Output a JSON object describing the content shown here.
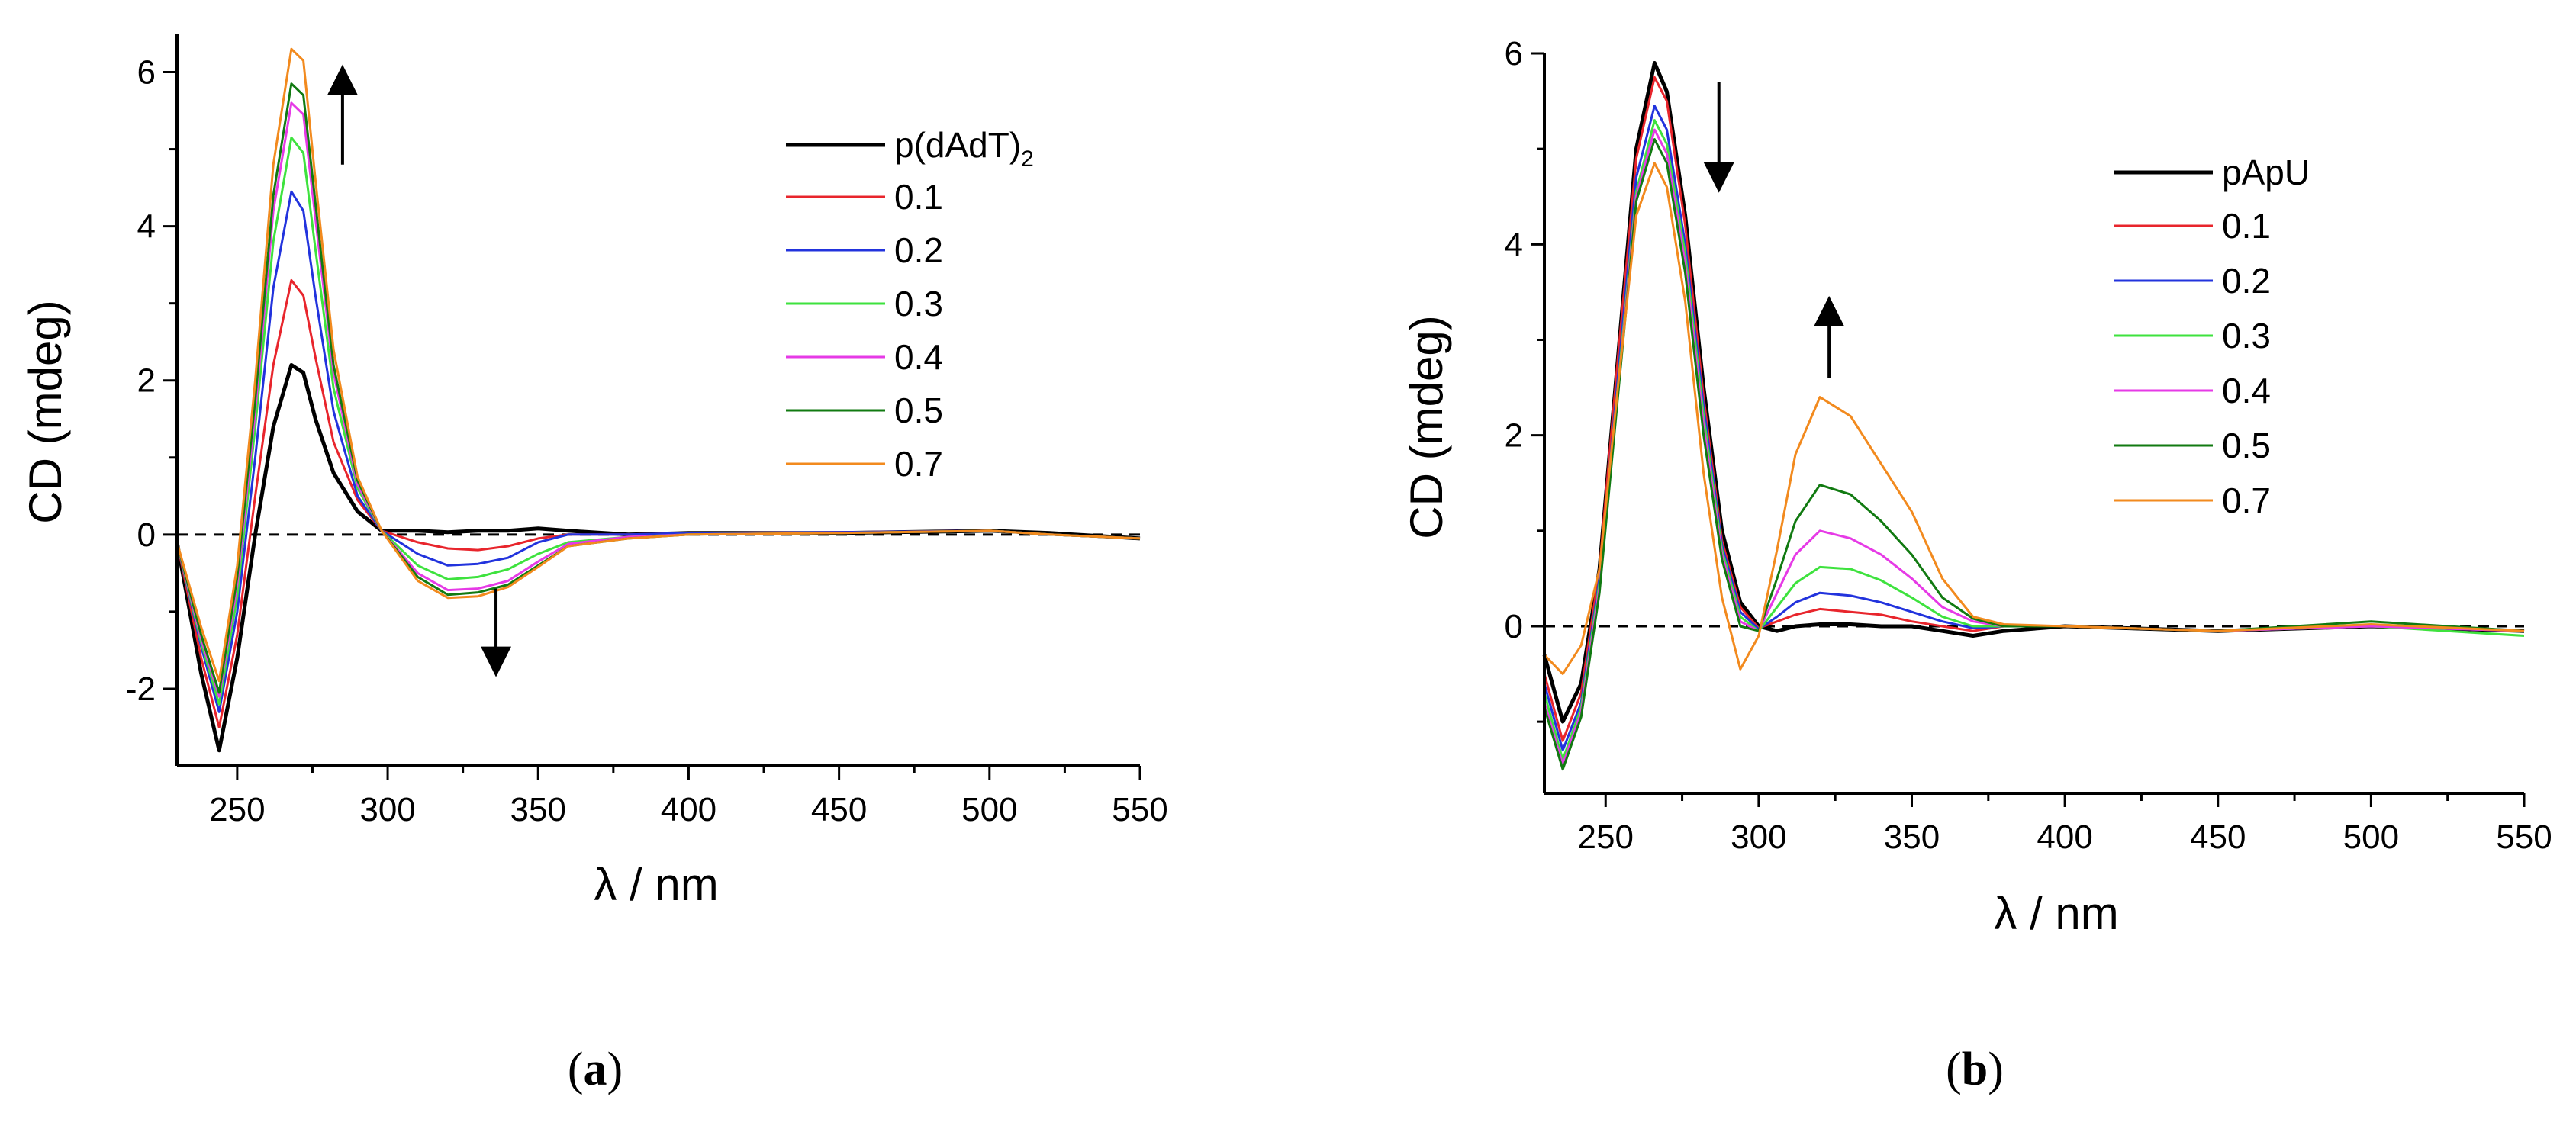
{
  "figure": {
    "panels": [
      {
        "label_open": "(",
        "label_letter": "a",
        "label_close": ")"
      },
      {
        "label_open": "(",
        "label_letter": "b",
        "label_close": ")"
      }
    ]
  },
  "colors": {
    "ref": "#000000",
    "c01": "#e8252c",
    "c02": "#2233dd",
    "c03": "#3ee23e",
    "c04": "#e63ae6",
    "c05": "#117a11",
    "c07": "#f28a1e"
  },
  "chart_data": [
    {
      "type": "line",
      "panel": "a",
      "title": "",
      "xlabel": "λ / nm",
      "ylabel": "CD (mdeg)",
      "xlim": [
        230,
        550
      ],
      "ylim": [
        -3,
        6.5
      ],
      "xticks": [
        250,
        300,
        350,
        400,
        450,
        500,
        550
      ],
      "yticks": [
        -2,
        0,
        2,
        4,
        6
      ],
      "zero_line": "dashed",
      "legend_position": "top-right",
      "legend": [
        {
          "label": "p(dAdT)",
          "subscript": "2"
        },
        {
          "label": "0.1"
        },
        {
          "label": "0.2"
        },
        {
          "label": "0.3"
        },
        {
          "label": "0.4"
        },
        {
          "label": "0.5"
        },
        {
          "label": "0.7"
        }
      ],
      "arrows": [
        {
          "x": 285,
          "from": 4.8,
          "to": 5.9,
          "direction": "up"
        },
        {
          "x": 336,
          "from": -0.7,
          "to": -1.65,
          "direction": "down"
        }
      ],
      "series": [
        {
          "name": "p(dAdT)2",
          "color": "#000000",
          "x": [
            230,
            238,
            244,
            250,
            256,
            262,
            268,
            272,
            276,
            282,
            290,
            298,
            310,
            320,
            330,
            340,
            350,
            360,
            380,
            400,
            450,
            500,
            520,
            550
          ],
          "y": [
            -0.1,
            -1.8,
            -2.8,
            -1.6,
            0.0,
            1.4,
            2.2,
            2.1,
            1.5,
            0.8,
            0.3,
            0.05,
            0.05,
            0.03,
            0.05,
            0.05,
            0.08,
            0.05,
            0.0,
            0.02,
            0.02,
            0.05,
            0.02,
            -0.05
          ]
        },
        {
          "name": "0.1",
          "color": "#e8252c",
          "x": [
            230,
            238,
            244,
            250,
            256,
            262,
            268,
            272,
            276,
            282,
            290,
            298,
            310,
            320,
            330,
            340,
            350,
            360,
            380,
            400,
            450,
            500,
            520,
            550
          ],
          "y": [
            -0.1,
            -1.6,
            -2.5,
            -1.3,
            0.5,
            2.2,
            3.3,
            3.1,
            2.3,
            1.2,
            0.45,
            0.05,
            -0.1,
            -0.18,
            -0.2,
            -0.15,
            -0.05,
            0.0,
            0.0,
            0.02,
            0.03,
            0.05,
            0.0,
            -0.05
          ]
        },
        {
          "name": "0.2",
          "color": "#2233dd",
          "x": [
            230,
            238,
            244,
            250,
            256,
            262,
            268,
            272,
            276,
            282,
            290,
            298,
            310,
            320,
            330,
            340,
            350,
            360,
            380,
            400,
            450,
            500,
            520,
            550
          ],
          "y": [
            -0.1,
            -1.45,
            -2.3,
            -1.0,
            1.0,
            3.2,
            4.45,
            4.2,
            3.1,
            1.6,
            0.5,
            0.05,
            -0.25,
            -0.4,
            -0.38,
            -0.3,
            -0.1,
            0.0,
            0.0,
            0.02,
            0.03,
            0.05,
            0.0,
            -0.05
          ]
        },
        {
          "name": "0.3",
          "color": "#3ee23e",
          "x": [
            230,
            238,
            244,
            250,
            256,
            262,
            268,
            272,
            276,
            282,
            290,
            298,
            310,
            320,
            330,
            340,
            350,
            360,
            380,
            400,
            450,
            500,
            520,
            550
          ],
          "y": [
            -0.1,
            -1.4,
            -2.2,
            -0.8,
            1.4,
            3.8,
            5.15,
            4.95,
            3.7,
            1.9,
            0.6,
            0.05,
            -0.4,
            -0.58,
            -0.55,
            -0.45,
            -0.25,
            -0.1,
            -0.03,
            0.0,
            0.02,
            0.05,
            0.0,
            -0.05
          ]
        },
        {
          "name": "0.4",
          "color": "#e63ae6",
          "x": [
            230,
            238,
            244,
            250,
            256,
            262,
            268,
            272,
            276,
            282,
            290,
            298,
            310,
            320,
            330,
            340,
            350,
            360,
            380,
            400,
            450,
            500,
            520,
            550
          ],
          "y": [
            -0.1,
            -1.35,
            -2.1,
            -0.65,
            1.6,
            4.2,
            5.6,
            5.45,
            4.1,
            2.1,
            0.65,
            0.05,
            -0.5,
            -0.72,
            -0.7,
            -0.6,
            -0.35,
            -0.12,
            -0.03,
            0.0,
            0.02,
            0.05,
            0.0,
            -0.05
          ]
        },
        {
          "name": "0.5",
          "color": "#117a11",
          "x": [
            230,
            238,
            244,
            250,
            256,
            262,
            268,
            272,
            276,
            282,
            290,
            298,
            310,
            320,
            330,
            340,
            350,
            360,
            380,
            400,
            450,
            500,
            520,
            550
          ],
          "y": [
            -0.1,
            -1.3,
            -2.05,
            -0.55,
            1.75,
            4.4,
            5.85,
            5.7,
            4.3,
            2.2,
            0.7,
            0.05,
            -0.55,
            -0.78,
            -0.75,
            -0.65,
            -0.4,
            -0.15,
            -0.05,
            0.0,
            0.02,
            0.05,
            0.0,
            -0.05
          ]
        },
        {
          "name": "0.7",
          "color": "#f28a1e",
          "x": [
            230,
            238,
            244,
            250,
            256,
            262,
            268,
            272,
            276,
            282,
            290,
            298,
            310,
            320,
            330,
            340,
            350,
            360,
            380,
            400,
            450,
            500,
            520,
            550
          ],
          "y": [
            -0.1,
            -1.2,
            -1.9,
            -0.4,
            2.0,
            4.8,
            6.3,
            6.15,
            4.6,
            2.4,
            0.75,
            0.05,
            -0.6,
            -0.82,
            -0.8,
            -0.68,
            -0.42,
            -0.15,
            -0.05,
            0.0,
            0.02,
            0.05,
            0.0,
            -0.05
          ]
        }
      ]
    },
    {
      "type": "line",
      "panel": "b",
      "title": "",
      "xlabel": "λ / nm",
      "ylabel": "CD (mdeg)",
      "xlim": [
        230,
        550
      ],
      "ylim": [
        -1.75,
        6
      ],
      "xticks": [
        250,
        300,
        350,
        400,
        450,
        500,
        550
      ],
      "yticks": [
        0,
        2,
        4,
        6
      ],
      "zero_line": "dashed",
      "legend_position": "top-right",
      "legend": [
        {
          "label": "pApU"
        },
        {
          "label": "0.1"
        },
        {
          "label": "0.2"
        },
        {
          "label": "0.3"
        },
        {
          "label": "0.4"
        },
        {
          "label": "0.5"
        },
        {
          "label": "0.7"
        }
      ],
      "arrows": [
        {
          "x": 287,
          "from": 5.7,
          "to": 4.7,
          "direction": "down"
        },
        {
          "x": 323,
          "from": 2.6,
          "to": 3.3,
          "direction": "up"
        }
      ],
      "series": [
        {
          "name": "pApU",
          "color": "#000000",
          "x": [
            230,
            236,
            242,
            248,
            254,
            260,
            266,
            270,
            276,
            282,
            288,
            294,
            300,
            306,
            312,
            320,
            330,
            340,
            350,
            360,
            370,
            380,
            400,
            450,
            500,
            550
          ],
          "y": [
            -0.3,
            -1.0,
            -0.6,
            0.6,
            2.8,
            5.0,
            5.9,
            5.6,
            4.3,
            2.5,
            1.0,
            0.25,
            0.0,
            -0.05,
            0.0,
            0.02,
            0.02,
            0.0,
            0.0,
            -0.05,
            -0.1,
            -0.05,
            0.0,
            -0.05,
            0.0,
            -0.05
          ]
        },
        {
          "name": "0.1",
          "color": "#e8252c",
          "x": [
            230,
            236,
            242,
            248,
            254,
            260,
            266,
            270,
            276,
            282,
            288,
            294,
            300,
            306,
            312,
            320,
            330,
            340,
            350,
            360,
            370,
            380,
            400,
            450,
            500,
            550
          ],
          "y": [
            -0.5,
            -1.2,
            -0.7,
            0.6,
            2.8,
            4.9,
            5.75,
            5.5,
            4.2,
            2.4,
            0.9,
            0.2,
            -0.02,
            0.05,
            0.12,
            0.18,
            0.15,
            0.12,
            0.05,
            0.0,
            -0.05,
            0.0,
            0.0,
            -0.05,
            0.0,
            -0.05
          ]
        },
        {
          "name": "0.2",
          "color": "#2233dd",
          "x": [
            230,
            236,
            242,
            248,
            254,
            260,
            266,
            270,
            276,
            282,
            288,
            294,
            300,
            306,
            312,
            320,
            330,
            340,
            350,
            360,
            370,
            380,
            400,
            450,
            500,
            550
          ],
          "y": [
            -0.6,
            -1.3,
            -0.8,
            0.5,
            2.6,
            4.7,
            5.45,
            5.2,
            4.0,
            2.3,
            0.85,
            0.15,
            -0.03,
            0.1,
            0.25,
            0.35,
            0.32,
            0.25,
            0.15,
            0.05,
            -0.02,
            0.0,
            0.0,
            -0.05,
            0.0,
            -0.05
          ]
        },
        {
          "name": "0.3",
          "color": "#3ee23e",
          "x": [
            230,
            236,
            242,
            248,
            254,
            260,
            266,
            270,
            276,
            282,
            288,
            294,
            300,
            306,
            312,
            320,
            330,
            340,
            350,
            360,
            370,
            380,
            400,
            450,
            500,
            550
          ],
          "y": [
            -0.7,
            -1.4,
            -0.85,
            0.45,
            2.5,
            4.55,
            5.3,
            5.05,
            3.9,
            2.2,
            0.8,
            0.1,
            -0.05,
            0.2,
            0.45,
            0.62,
            0.6,
            0.48,
            0.3,
            0.1,
            0.0,
            0.0,
            0.0,
            -0.05,
            0.0,
            -0.1
          ]
        },
        {
          "name": "0.4",
          "color": "#e63ae6",
          "x": [
            230,
            236,
            242,
            248,
            254,
            260,
            266,
            270,
            276,
            282,
            288,
            294,
            300,
            306,
            312,
            320,
            330,
            340,
            350,
            360,
            370,
            380,
            400,
            450,
            500,
            550
          ],
          "y": [
            -0.8,
            -1.45,
            -0.9,
            0.4,
            2.45,
            4.5,
            5.2,
            4.95,
            3.8,
            2.1,
            0.75,
            0.05,
            -0.05,
            0.35,
            0.75,
            1.0,
            0.92,
            0.75,
            0.5,
            0.2,
            0.05,
            0.0,
            0.0,
            -0.05,
            0.0,
            -0.05
          ]
        },
        {
          "name": "0.5",
          "color": "#117a11",
          "x": [
            230,
            236,
            242,
            248,
            254,
            260,
            266,
            270,
            276,
            282,
            288,
            294,
            300,
            306,
            312,
            320,
            330,
            340,
            350,
            360,
            370,
            380,
            400,
            450,
            500,
            550
          ],
          "y": [
            -0.85,
            -1.5,
            -0.95,
            0.35,
            2.4,
            4.45,
            5.1,
            4.85,
            3.7,
            2.0,
            0.7,
            0.0,
            -0.05,
            0.5,
            1.1,
            1.48,
            1.38,
            1.1,
            0.75,
            0.3,
            0.08,
            0.0,
            0.0,
            -0.05,
            0.05,
            -0.05
          ]
        },
        {
          "name": "0.7",
          "color": "#f28a1e",
          "x": [
            230,
            236,
            242,
            248,
            254,
            260,
            266,
            270,
            276,
            282,
            288,
            294,
            300,
            306,
            312,
            320,
            330,
            340,
            350,
            360,
            370,
            380,
            400,
            450,
            500,
            550
          ],
          "y": [
            -0.3,
            -0.5,
            -0.2,
            0.6,
            2.5,
            4.3,
            4.85,
            4.6,
            3.4,
            1.6,
            0.3,
            -0.45,
            -0.1,
            0.8,
            1.8,
            2.4,
            2.2,
            1.7,
            1.2,
            0.5,
            0.1,
            0.02,
            0.0,
            -0.05,
            0.02,
            -0.05
          ]
        }
      ]
    }
  ]
}
